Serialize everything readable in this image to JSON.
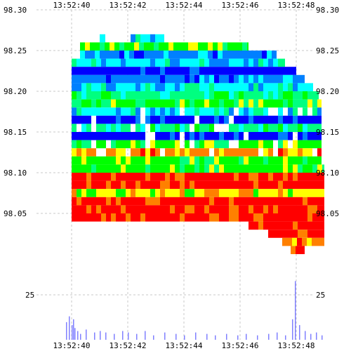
{
  "chart_data": [
    {
      "type": "heatmap",
      "title": "",
      "xlabel": "",
      "ylabel": "",
      "x_ticks": [
        "13:52:40",
        "13:52:42",
        "13:52:44",
        "13:52:46",
        "13:52:48"
      ],
      "y_ticks": [
        "98.30",
        "98.25",
        "98.20",
        "98.15",
        "98.10",
        "98.05"
      ],
      "x_range_seconds": [
        39.7,
        49.1
      ],
      "ylim": [
        98.0,
        98.3
      ],
      "grid": true,
      "y_labels_both_sides": true,
      "color_scale": [
        "#0000ff",
        "#0080ff",
        "#00ffff",
        "#00ff80",
        "#00ff00",
        "#ffff00",
        "#ff8000",
        "#ff0000"
      ],
      "color_scale_note": "colder colors = lower intensity, red = highest",
      "bands": [
        {
          "price": 98.265,
          "x_start": 41.0,
          "x_end": 41.2,
          "color": "#00ffff"
        },
        {
          "price": 98.265,
          "x_start": 42.1,
          "x_end": 43.3,
          "color": "#00ffff"
        },
        {
          "price": 98.255,
          "x_start": 40.3,
          "x_end": 46.3,
          "color": "#00ff00"
        },
        {
          "price": 98.245,
          "x_start": 40.3,
          "x_end": 47.3,
          "color": "#0080ff"
        },
        {
          "price": 98.235,
          "x_start": 40.0,
          "x_end": 47.6,
          "color": "#00ffff"
        },
        {
          "price": 98.225,
          "x_start": 40.0,
          "x_end": 48.0,
          "color": "#0000ff"
        },
        {
          "price": 98.215,
          "x_start": 40.0,
          "x_end": 48.3,
          "color": "#0080ff"
        },
        {
          "price": 98.205,
          "x_start": 40.0,
          "x_end": 48.6,
          "color": "#00ffff"
        },
        {
          "price": 98.195,
          "x_start": 40.0,
          "x_end": 48.8,
          "color": "#00ff80"
        },
        {
          "price": 98.185,
          "x_start": 40.0,
          "x_end": 48.9,
          "color": "#00ff00"
        },
        {
          "price": 98.175,
          "x_start": 40.0,
          "x_end": 48.9,
          "color": "#00ffff"
        },
        {
          "price": 98.165,
          "x_start": 40.0,
          "x_end": 48.9,
          "color": "#0000ff"
        },
        {
          "price": 98.155,
          "x_start": 40.0,
          "x_end": 48.9,
          "color": "#00ff80"
        },
        {
          "price": 98.145,
          "x_start": 40.0,
          "x_end": 48.9,
          "color": "#0000ff"
        },
        {
          "price": 98.135,
          "x_start": 40.0,
          "x_end": 48.9,
          "color": "#00ff00"
        },
        {
          "price": 98.125,
          "x_start": 40.0,
          "x_end": 48.9,
          "color": "#ff8000"
        },
        {
          "price": 98.115,
          "x_start": 40.0,
          "x_end": 48.9,
          "color": "#00ff00"
        },
        {
          "price": 98.105,
          "x_start": 40.0,
          "x_end": 49.0,
          "color": "#00ff00"
        },
        {
          "price": 98.095,
          "x_start": 40.0,
          "x_end": 49.0,
          "color": "#ff0000"
        },
        {
          "price": 98.085,
          "x_start": 40.0,
          "x_end": 49.0,
          "color": "#ff0000"
        },
        {
          "price": 98.075,
          "x_start": 40.0,
          "x_end": 49.0,
          "color": "#ffff00"
        },
        {
          "price": 98.065,
          "x_start": 40.0,
          "x_end": 49.0,
          "color": "#ff0000"
        },
        {
          "price": 98.055,
          "x_start": 40.0,
          "x_end": 49.0,
          "color": "#ff0000"
        },
        {
          "price": 98.045,
          "x_start": 40.0,
          "x_end": 49.0,
          "color": "#ff0000"
        },
        {
          "price": 98.035,
          "x_start": 46.3,
          "x_end": 49.0,
          "color": "#ff0000"
        },
        {
          "price": 98.025,
          "x_start": 47.0,
          "x_end": 49.0,
          "color": "#ff0000"
        },
        {
          "price": 98.015,
          "x_start": 47.5,
          "x_end": 49.0,
          "color": "#ff8000"
        },
        {
          "price": 98.005,
          "x_start": 47.8,
          "x_end": 48.3,
          "color": "#ff0000"
        }
      ]
    },
    {
      "type": "bar",
      "title": "",
      "xlabel": "",
      "ylabel": "",
      "x_ticks": [
        "13:52:40",
        "13:52:42",
        "13:52:44",
        "13:52:46",
        "13:52:48"
      ],
      "y_ticks": [
        "25"
      ],
      "ylim": [
        0,
        45
      ],
      "bar_color": "#8080ff",
      "x": [
        39.8,
        39.9,
        40.0,
        40.05,
        40.1,
        40.2,
        40.3,
        40.5,
        40.8,
        41.0,
        41.2,
        41.5,
        41.8,
        42.0,
        42.3,
        42.6,
        42.9,
        43.3,
        43.7,
        44.0,
        44.4,
        44.8,
        45.1,
        45.5,
        45.9,
        46.2,
        46.6,
        47.0,
        47.3,
        47.6,
        47.85,
        47.95,
        48.1,
        48.3,
        48.5,
        48.7,
        48.9
      ],
      "values": [
        12,
        16,
        10,
        14,
        8,
        6,
        4,
        7,
        5,
        6,
        5,
        4,
        6,
        5,
        4,
        6,
        3,
        5,
        4,
        3,
        5,
        4,
        3,
        4,
        3,
        4,
        3,
        4,
        5,
        3,
        14,
        40,
        10,
        6,
        4,
        5,
        3
      ]
    }
  ]
}
